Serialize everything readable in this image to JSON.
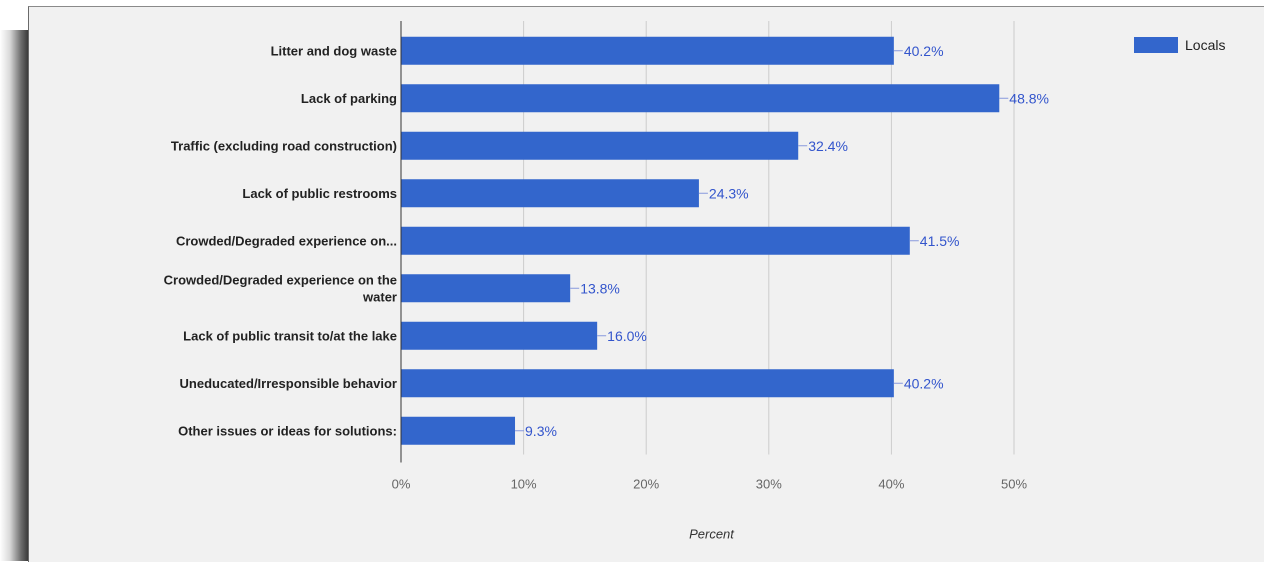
{
  "chart_data": {
    "type": "bar",
    "orientation": "horizontal",
    "categories": [
      "Litter and dog waste",
      "Lack of parking",
      "Traffic (excluding road construction)",
      "Lack of public restrooms",
      "Crowded/Degraded experience on...",
      [
        "Crowded/Degraded experience on the",
        "water"
      ],
      "Lack of public transit to/at the lake",
      "Uneducated/Irresponsible behavior",
      "Other issues or ideas for solutions:"
    ],
    "series": [
      {
        "name": "Locals",
        "color": "#3366cc",
        "values": [
          40.2,
          48.8,
          32.4,
          24.3,
          41.5,
          13.8,
          16.0,
          40.2,
          9.3
        ]
      }
    ],
    "value_labels": [
      "40.2%",
      "48.8%",
      "32.4%",
      "24.3%",
      "41.5%",
      "13.8%",
      "16.0%",
      "40.2%",
      "9.3%"
    ],
    "xlabel": "Percent",
    "ylabel": "",
    "xlim": [
      0,
      50
    ],
    "xticks": [
      0,
      10,
      20,
      30,
      40,
      50
    ],
    "xtick_labels": [
      "0%",
      "10%",
      "20%",
      "30%",
      "40%",
      "50%"
    ],
    "grid": true,
    "legend_position": "top-right"
  }
}
